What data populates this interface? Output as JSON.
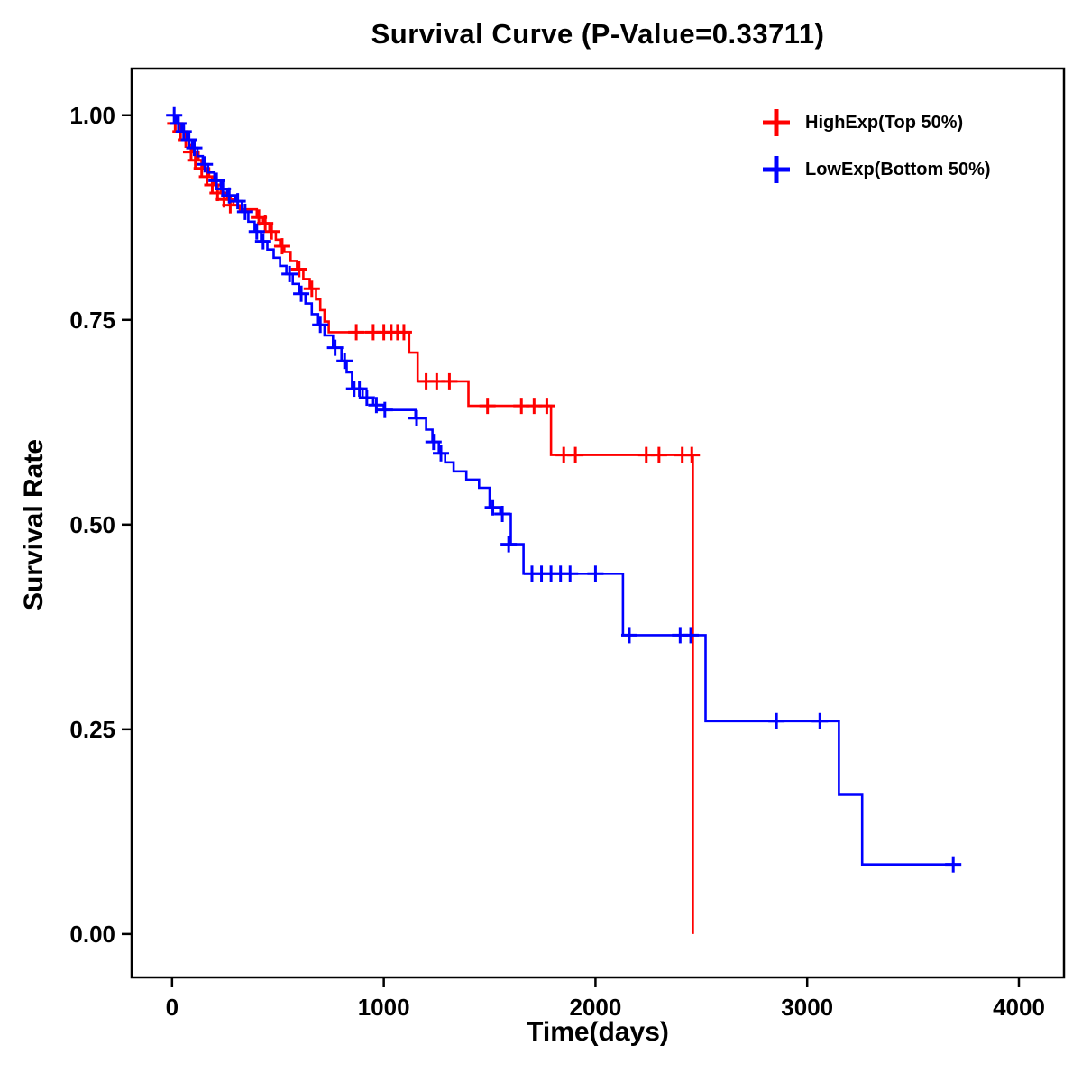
{
  "chart_data": {
    "type": "line",
    "chart_kind": "kaplan-meier-step-curve",
    "title": "Survival Curve (P-Value=0.33711)",
    "p_value": "0.33711",
    "xlabel": "Time(days)",
    "ylabel": "Survival Rate",
    "xlim": [
      0,
      4000
    ],
    "ylim": [
      0,
      1
    ],
    "grid": false,
    "legend_position": "top-right",
    "x_ticks": [
      {
        "value": 0,
        "label": "0"
      },
      {
        "value": 1000,
        "label": "1000"
      },
      {
        "value": 2000,
        "label": "2000"
      },
      {
        "value": 3000,
        "label": "3000"
      },
      {
        "value": 4000,
        "label": "4000"
      }
    ],
    "y_ticks": [
      {
        "value": 0.0,
        "label": "0.00"
      },
      {
        "value": 0.25,
        "label": "0.25"
      },
      {
        "value": 0.5,
        "label": "0.50"
      },
      {
        "value": 0.75,
        "label": "0.75"
      },
      {
        "value": 1.0,
        "label": "1.00"
      }
    ],
    "series": [
      {
        "name": "HighExp(Top 50%)",
        "color": "#FF0000",
        "steps": [
          [
            0,
            1.0
          ],
          [
            25,
            0.99
          ],
          [
            50,
            0.98
          ],
          [
            75,
            0.97
          ],
          [
            100,
            0.955
          ],
          [
            125,
            0.945
          ],
          [
            150,
            0.935
          ],
          [
            175,
            0.925
          ],
          [
            200,
            0.915
          ],
          [
            230,
            0.905
          ],
          [
            260,
            0.897
          ],
          [
            290,
            0.89
          ],
          [
            320,
            0.885
          ],
          [
            400,
            0.875
          ],
          [
            430,
            0.868
          ],
          [
            460,
            0.858
          ],
          [
            490,
            0.848
          ],
          [
            510,
            0.84
          ],
          [
            530,
            0.833
          ],
          [
            560,
            0.822
          ],
          [
            590,
            0.812
          ],
          [
            620,
            0.8
          ],
          [
            650,
            0.788
          ],
          [
            680,
            0.775
          ],
          [
            700,
            0.762
          ],
          [
            720,
            0.748
          ],
          [
            740,
            0.735
          ],
          [
            1120,
            0.71
          ],
          [
            1160,
            0.675
          ],
          [
            1400,
            0.645
          ],
          [
            1790,
            0.585
          ],
          [
            2460,
            0.0
          ]
        ],
        "censor_marks": [
          [
            15,
            0.99
          ],
          [
            40,
            0.98
          ],
          [
            65,
            0.97
          ],
          [
            90,
            0.955
          ],
          [
            110,
            0.945
          ],
          [
            140,
            0.935
          ],
          [
            165,
            0.925
          ],
          [
            190,
            0.915
          ],
          [
            215,
            0.905
          ],
          [
            245,
            0.897
          ],
          [
            275,
            0.89
          ],
          [
            410,
            0.875
          ],
          [
            440,
            0.868
          ],
          [
            470,
            0.858
          ],
          [
            520,
            0.84
          ],
          [
            600,
            0.812
          ],
          [
            660,
            0.788
          ],
          [
            870,
            0.735
          ],
          [
            950,
            0.735
          ],
          [
            1000,
            0.735
          ],
          [
            1035,
            0.735
          ],
          [
            1065,
            0.735
          ],
          [
            1095,
            0.735
          ],
          [
            1200,
            0.675
          ],
          [
            1250,
            0.675
          ],
          [
            1310,
            0.675
          ],
          [
            1490,
            0.645
          ],
          [
            1650,
            0.645
          ],
          [
            1710,
            0.645
          ],
          [
            1770,
            0.645
          ],
          [
            1850,
            0.585
          ],
          [
            1905,
            0.585
          ],
          [
            2240,
            0.585
          ],
          [
            2300,
            0.585
          ],
          [
            2410,
            0.585
          ],
          [
            2455,
            0.585
          ]
        ]
      },
      {
        "name": "LowExp(Bottom 50%)",
        "color": "#0000FF",
        "steps": [
          [
            0,
            1.0
          ],
          [
            20,
            0.99
          ],
          [
            45,
            0.98
          ],
          [
            70,
            0.97
          ],
          [
            95,
            0.96
          ],
          [
            120,
            0.95
          ],
          [
            145,
            0.94
          ],
          [
            170,
            0.93
          ],
          [
            200,
            0.92
          ],
          [
            230,
            0.91
          ],
          [
            260,
            0.902
          ],
          [
            300,
            0.895
          ],
          [
            330,
            0.882
          ],
          [
            360,
            0.87
          ],
          [
            390,
            0.858
          ],
          [
            420,
            0.846
          ],
          [
            450,
            0.836
          ],
          [
            480,
            0.826
          ],
          [
            510,
            0.816
          ],
          [
            540,
            0.806
          ],
          [
            570,
            0.794
          ],
          [
            600,
            0.782
          ],
          [
            630,
            0.77
          ],
          [
            660,
            0.757
          ],
          [
            690,
            0.744
          ],
          [
            720,
            0.731
          ],
          [
            760,
            0.716
          ],
          [
            800,
            0.7
          ],
          [
            825,
            0.686
          ],
          [
            850,
            0.666
          ],
          [
            900,
            0.655
          ],
          [
            950,
            0.646
          ],
          [
            1000,
            0.64
          ],
          [
            1150,
            0.63
          ],
          [
            1200,
            0.616
          ],
          [
            1230,
            0.601
          ],
          [
            1260,
            0.587
          ],
          [
            1290,
            0.576
          ],
          [
            1330,
            0.565
          ],
          [
            1390,
            0.555
          ],
          [
            1450,
            0.545
          ],
          [
            1500,
            0.521
          ],
          [
            1550,
            0.513
          ],
          [
            1600,
            0.476
          ],
          [
            1660,
            0.44
          ],
          [
            2130,
            0.365
          ],
          [
            2520,
            0.26
          ],
          [
            3150,
            0.17
          ],
          [
            3260,
            0.085
          ],
          [
            3700,
            0.085
          ]
        ],
        "censor_marks": [
          [
            10,
            1.0
          ],
          [
            30,
            0.99
          ],
          [
            55,
            0.98
          ],
          [
            80,
            0.97
          ],
          [
            105,
            0.96
          ],
          [
            155,
            0.94
          ],
          [
            210,
            0.92
          ],
          [
            240,
            0.91
          ],
          [
            270,
            0.902
          ],
          [
            310,
            0.895
          ],
          [
            345,
            0.882
          ],
          [
            400,
            0.858
          ],
          [
            430,
            0.846
          ],
          [
            555,
            0.806
          ],
          [
            610,
            0.782
          ],
          [
            700,
            0.744
          ],
          [
            770,
            0.716
          ],
          [
            815,
            0.7
          ],
          [
            860,
            0.666
          ],
          [
            885,
            0.666
          ],
          [
            920,
            0.655
          ],
          [
            965,
            0.646
          ],
          [
            1005,
            0.64
          ],
          [
            1155,
            0.63
          ],
          [
            1235,
            0.601
          ],
          [
            1270,
            0.587
          ],
          [
            1515,
            0.521
          ],
          [
            1560,
            0.513
          ],
          [
            1590,
            0.476
          ],
          [
            1700,
            0.44
          ],
          [
            1745,
            0.44
          ],
          [
            1790,
            0.44
          ],
          [
            1835,
            0.44
          ],
          [
            1880,
            0.44
          ],
          [
            2000,
            0.44
          ],
          [
            2160,
            0.365
          ],
          [
            2400,
            0.365
          ],
          [
            2450,
            0.365
          ],
          [
            2855,
            0.26
          ],
          [
            3060,
            0.26
          ],
          [
            3690,
            0.085
          ]
        ]
      }
    ]
  }
}
